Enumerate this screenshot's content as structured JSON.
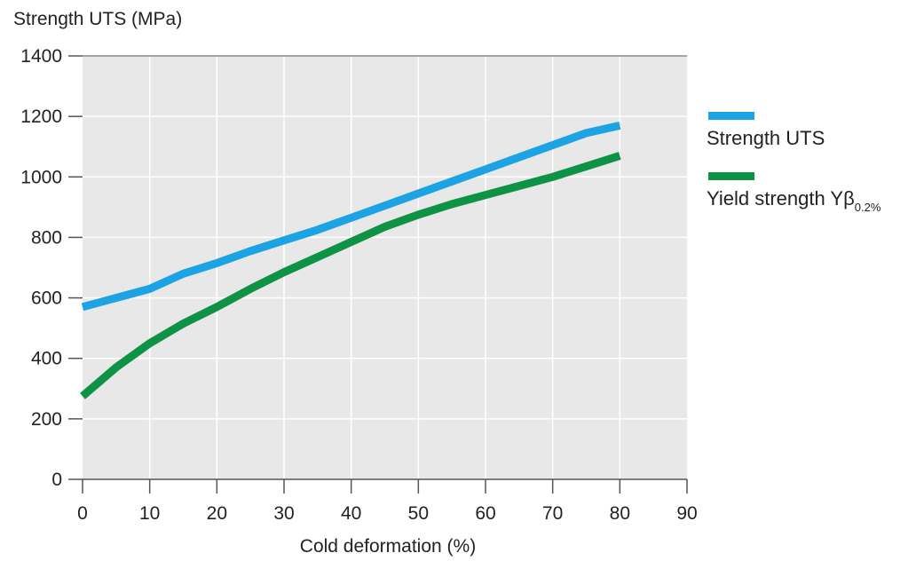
{
  "chart_data": {
    "type": "line",
    "title": "",
    "ylabel": "Strength UTS (MPa)",
    "xlabel": "Cold deformation (%)",
    "xlim": [
      0,
      90
    ],
    "ylim": [
      0,
      1400
    ],
    "x_ticks": [
      0,
      10,
      20,
      30,
      40,
      50,
      60,
      70,
      80,
      90
    ],
    "y_ticks": [
      0,
      200,
      400,
      600,
      800,
      1000,
      1200,
      1400
    ],
    "grid": true,
    "legend_position": "right",
    "series": [
      {
        "name": "Strength UTS",
        "color": "#1ba3e3",
        "x": [
          0,
          5,
          10,
          15,
          20,
          25,
          30,
          35,
          40,
          45,
          50,
          55,
          60,
          65,
          70,
          75,
          80
        ],
        "y": [
          570,
          600,
          630,
          680,
          715,
          755,
          790,
          825,
          865,
          905,
          945,
          985,
          1025,
          1065,
          1105,
          1145,
          1170
        ]
      },
      {
        "name": "Yield strength Yβ",
        "name_sub": "0.2%",
        "color": "#0e9245",
        "x": [
          0,
          5,
          10,
          15,
          20,
          25,
          30,
          35,
          40,
          45,
          50,
          55,
          60,
          65,
          70,
          75,
          80
        ],
        "y": [
          275,
          370,
          450,
          515,
          570,
          630,
          685,
          735,
          785,
          835,
          875,
          910,
          940,
          970,
          1000,
          1035,
          1070
        ]
      }
    ]
  }
}
